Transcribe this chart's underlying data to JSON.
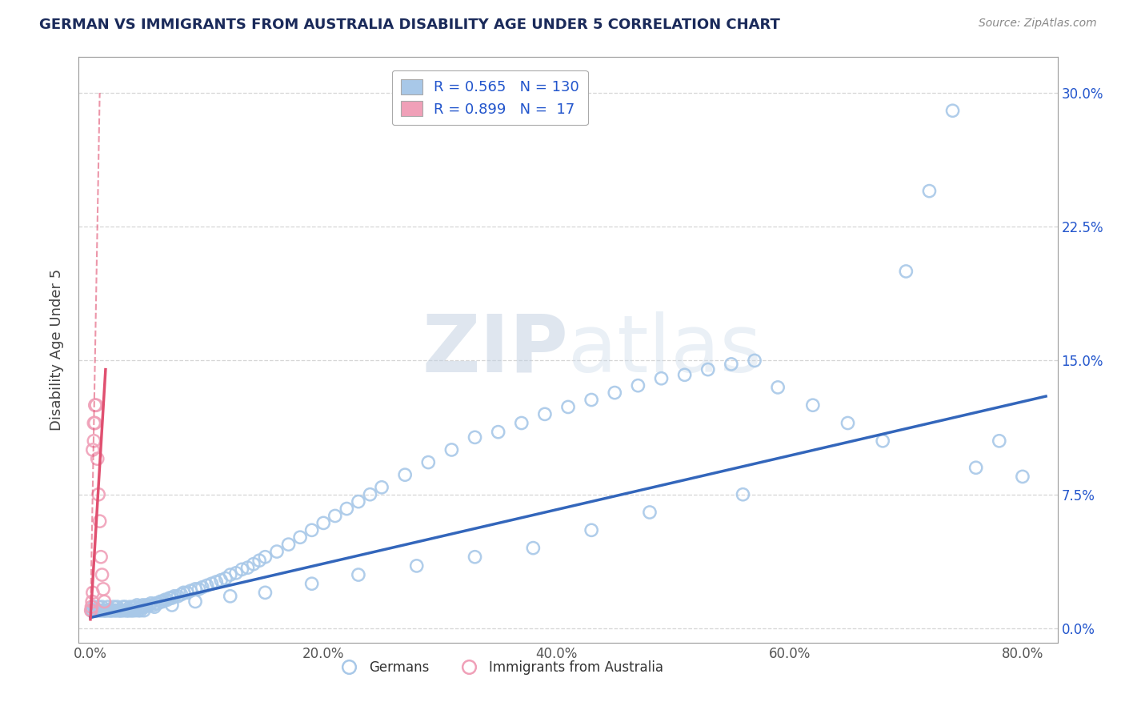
{
  "title": "GERMAN VS IMMIGRANTS FROM AUSTRALIA DISABILITY AGE UNDER 5 CORRELATION CHART",
  "source": "Source: ZipAtlas.com",
  "ylabel": "Disability Age Under 5",
  "xlabel_ticks": [
    "0.0%",
    "20.0%",
    "40.0%",
    "60.0%",
    "80.0%"
  ],
  "xlabel_vals": [
    0.0,
    0.2,
    0.4,
    0.6,
    0.8
  ],
  "ylabel_ticks": [
    "0.0%",
    "7.5%",
    "15.0%",
    "22.5%",
    "30.0%"
  ],
  "ylabel_vals": [
    0.0,
    0.075,
    0.15,
    0.225,
    0.3
  ],
  "xlim": [
    -0.01,
    0.83
  ],
  "ylim": [
    -0.008,
    0.32
  ],
  "blue_R": 0.565,
  "blue_N": 130,
  "pink_R": 0.899,
  "pink_N": 17,
  "blue_color": "#a8c8e8",
  "pink_color": "#f0a0b8",
  "blue_line_color": "#3366bb",
  "pink_line_color": "#e05070",
  "watermark_zip": "ZIP",
  "watermark_atlas": "atlas",
  "title_color": "#1a2a5a",
  "legend_text_color": "#2255cc",
  "background_color": "#ffffff",
  "grid_color": "#cccccc",
  "axis_color": "#999999",
  "blue_scatter_x": [
    0.001,
    0.002,
    0.003,
    0.004,
    0.005,
    0.006,
    0.007,
    0.008,
    0.009,
    0.01,
    0.011,
    0.012,
    0.013,
    0.014,
    0.015,
    0.016,
    0.017,
    0.018,
    0.019,
    0.02,
    0.021,
    0.022,
    0.023,
    0.024,
    0.025,
    0.026,
    0.027,
    0.028,
    0.029,
    0.03,
    0.031,
    0.032,
    0.033,
    0.034,
    0.035,
    0.036,
    0.037,
    0.038,
    0.039,
    0.04,
    0.041,
    0.042,
    0.043,
    0.044,
    0.045,
    0.046,
    0.047,
    0.048,
    0.05,
    0.052,
    0.054,
    0.056,
    0.058,
    0.06,
    0.062,
    0.064,
    0.066,
    0.068,
    0.07,
    0.072,
    0.075,
    0.078,
    0.08,
    0.083,
    0.086,
    0.09,
    0.093,
    0.096,
    0.1,
    0.104,
    0.108,
    0.112,
    0.116,
    0.12,
    0.125,
    0.13,
    0.135,
    0.14,
    0.145,
    0.15,
    0.16,
    0.17,
    0.18,
    0.19,
    0.2,
    0.21,
    0.22,
    0.23,
    0.24,
    0.25,
    0.27,
    0.29,
    0.31,
    0.33,
    0.35,
    0.37,
    0.39,
    0.41,
    0.43,
    0.45,
    0.47,
    0.49,
    0.51,
    0.53,
    0.55,
    0.57,
    0.59,
    0.62,
    0.65,
    0.68,
    0.7,
    0.72,
    0.74,
    0.76,
    0.78,
    0.8,
    0.56,
    0.48,
    0.43,
    0.38,
    0.33,
    0.28,
    0.23,
    0.19,
    0.15,
    0.12,
    0.09,
    0.07,
    0.055,
    0.042
  ],
  "blue_scatter_y": [
    0.01,
    0.01,
    0.012,
    0.01,
    0.01,
    0.01,
    0.012,
    0.01,
    0.01,
    0.012,
    0.01,
    0.01,
    0.01,
    0.01,
    0.012,
    0.01,
    0.01,
    0.01,
    0.01,
    0.012,
    0.01,
    0.01,
    0.012,
    0.01,
    0.01,
    0.01,
    0.01,
    0.012,
    0.01,
    0.012,
    0.01,
    0.01,
    0.01,
    0.012,
    0.01,
    0.01,
    0.012,
    0.01,
    0.012,
    0.013,
    0.01,
    0.012,
    0.01,
    0.012,
    0.013,
    0.01,
    0.012,
    0.013,
    0.013,
    0.014,
    0.013,
    0.014,
    0.014,
    0.015,
    0.015,
    0.016,
    0.016,
    0.017,
    0.017,
    0.018,
    0.018,
    0.019,
    0.02,
    0.02,
    0.021,
    0.022,
    0.022,
    0.023,
    0.024,
    0.025,
    0.026,
    0.027,
    0.028,
    0.03,
    0.031,
    0.033,
    0.034,
    0.036,
    0.038,
    0.04,
    0.043,
    0.047,
    0.051,
    0.055,
    0.059,
    0.063,
    0.067,
    0.071,
    0.075,
    0.079,
    0.086,
    0.093,
    0.1,
    0.107,
    0.11,
    0.115,
    0.12,
    0.124,
    0.128,
    0.132,
    0.136,
    0.14,
    0.142,
    0.145,
    0.148,
    0.15,
    0.135,
    0.125,
    0.115,
    0.105,
    0.2,
    0.245,
    0.29,
    0.09,
    0.105,
    0.085,
    0.075,
    0.065,
    0.055,
    0.045,
    0.04,
    0.035,
    0.03,
    0.025,
    0.02,
    0.018,
    0.015,
    0.013,
    0.012,
    0.011
  ],
  "pink_scatter_x": [
    0.0005,
    0.001,
    0.0015,
    0.002,
    0.002,
    0.003,
    0.003,
    0.004,
    0.004,
    0.005,
    0.006,
    0.007,
    0.008,
    0.009,
    0.01,
    0.011,
    0.012
  ],
  "pink_scatter_y": [
    0.01,
    0.012,
    0.015,
    0.02,
    0.1,
    0.105,
    0.115,
    0.115,
    0.125,
    0.125,
    0.095,
    0.075,
    0.06,
    0.04,
    0.03,
    0.022,
    0.015
  ],
  "blue_line_x": [
    0.0,
    0.82
  ],
  "blue_line_y": [
    0.006,
    0.13
  ],
  "pink_line_x": [
    0.0,
    0.013
  ],
  "pink_line_y": [
    0.005,
    0.145
  ]
}
